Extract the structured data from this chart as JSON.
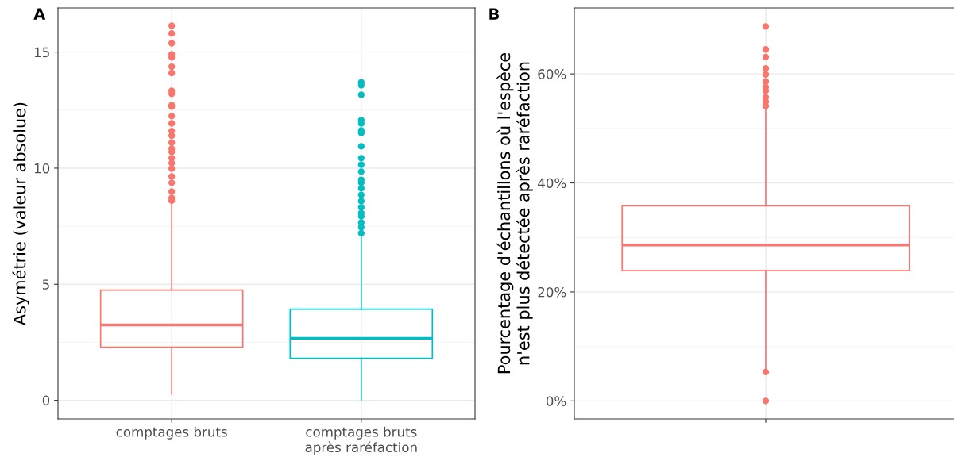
{
  "chart_data": [
    {
      "type": "box",
      "title": "A",
      "ylabel": "Asymétrie (valeur absolue)",
      "categories": [
        "comptages bruts",
        "comptages bruts\naprès raréfaction"
      ],
      "colors": [
        "#f8766d",
        "#00bfc4"
      ],
      "ylim": [
        -0.8,
        16.9
      ],
      "yticks": [
        0,
        5,
        10,
        15
      ],
      "grid": true,
      "boxes": [
        {
          "low": 0.27,
          "q1": 2.29,
          "median": 3.25,
          "q3": 4.75,
          "high": 8.5,
          "outliers": [
            16.13,
            15.8,
            15.38,
            14.9,
            14.77,
            14.37,
            14.1,
            13.33,
            13.2,
            12.72,
            12.65,
            12.24,
            11.93,
            11.6,
            11.4,
            11.1,
            10.84,
            10.7,
            10.43,
            10.22,
            9.98,
            9.64,
            9.37,
            8.99,
            8.72,
            8.6
          ]
        },
        {
          "low": 0,
          "q1": 1.81,
          "median": 2.67,
          "q3": 3.93,
          "high": 7.1,
          "outliers": [
            13.7,
            13.57,
            13.16,
            12.07,
            11.93,
            11.62,
            11.52,
            10.94,
            10.43,
            10.15,
            9.85,
            9.5,
            9.37,
            9.13,
            8.85,
            8.58,
            8.31,
            8.07,
            7.93,
            7.66,
            7.45,
            7.2
          ]
        }
      ]
    },
    {
      "type": "box",
      "title": "B",
      "ylabel": "Pourcentage d'échantillons où l'espèce\nn'est plus détectée après raréfaction",
      "categories": [
        null
      ],
      "colors": [
        "#f8766d"
      ],
      "ylim": [
        -3.3,
        72.1
      ],
      "yticks": [
        {
          "value": 0,
          "label": "0%"
        },
        {
          "value": 20,
          "label": "20%"
        },
        {
          "value": 40,
          "label": "40%"
        },
        {
          "value": 60,
          "label": "60%"
        }
      ],
      "grid": true,
      "boxes": [
        {
          "low": 6.0,
          "q1": 23.9,
          "median": 28.6,
          "q3": 35.8,
          "high": 53.8,
          "outliers": [
            68.7,
            64.5,
            63.1,
            61.0,
            59.9,
            58.6,
            57.6,
            56.9,
            55.7,
            54.9,
            54.1,
            5.3,
            0
          ]
        }
      ]
    }
  ]
}
